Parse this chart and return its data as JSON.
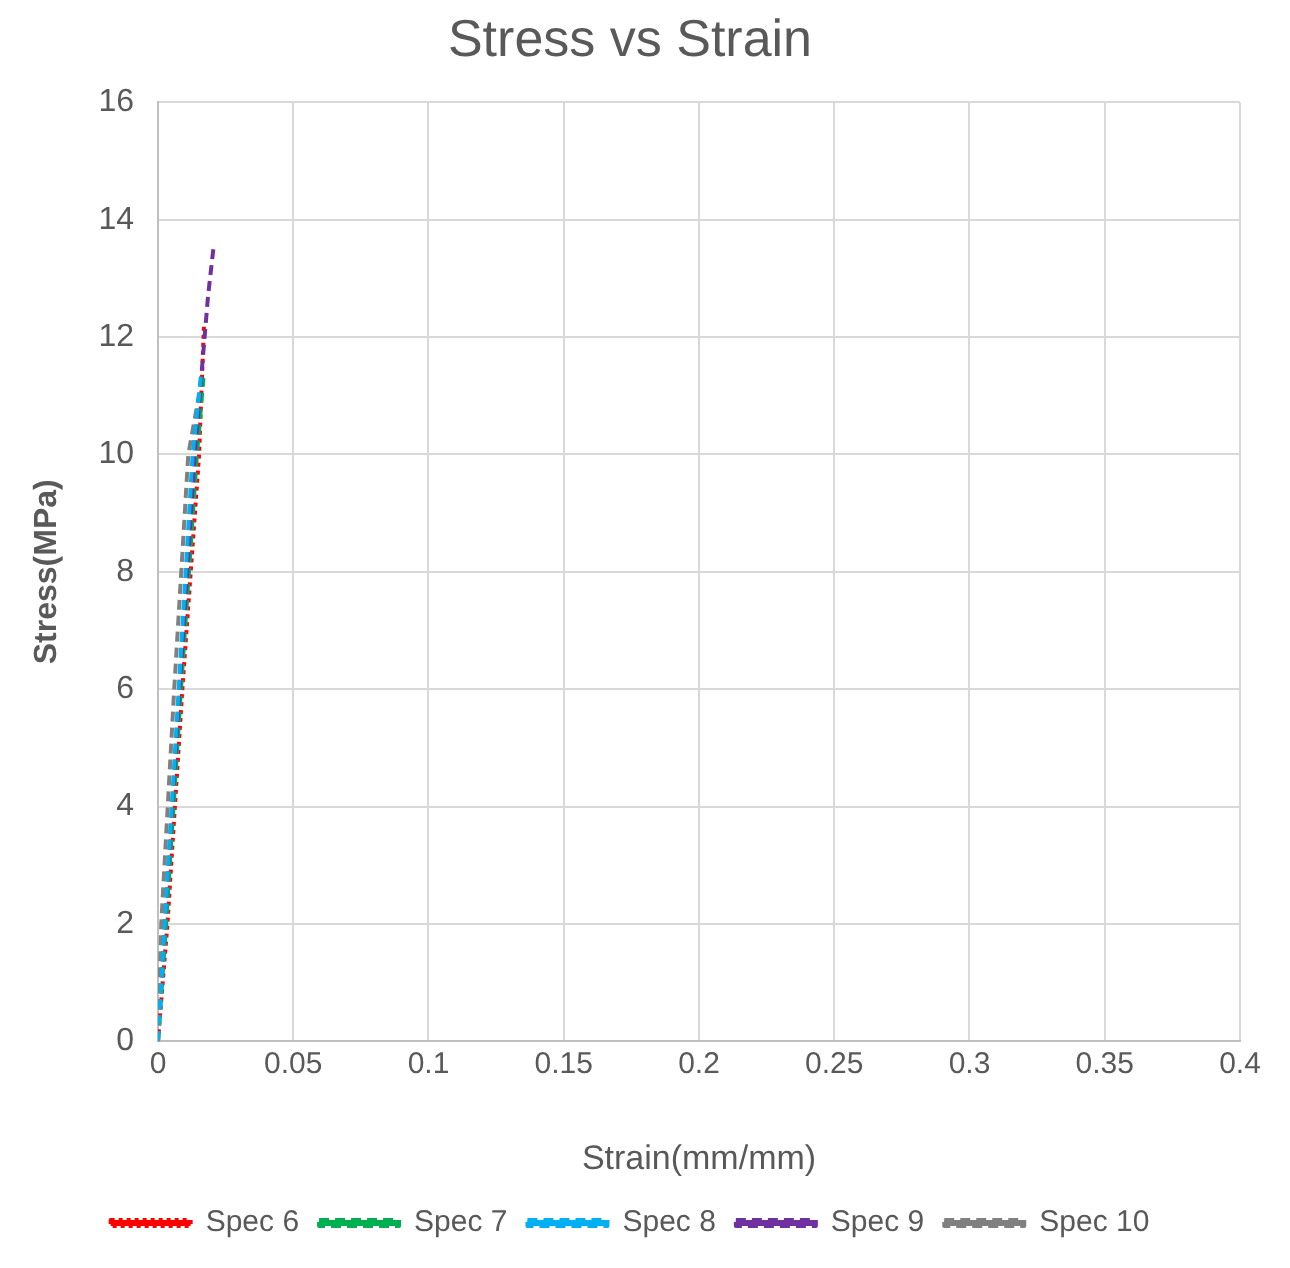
{
  "chart_data": {
    "type": "line",
    "title": "Stress vs Strain",
    "xlabel": "Strain(mm/mm)",
    "ylabel": "Stress(MPa)",
    "xlim": [
      0,
      0.4
    ],
    "xticks": [
      0,
      0.05,
      0.1,
      0.15,
      0.2,
      0.25,
      0.3,
      0.35,
      0.4
    ],
    "ylim": [
      0,
      16
    ],
    "yticks": [
      0,
      2,
      4,
      6,
      8,
      10,
      12,
      14,
      16
    ],
    "grid": true,
    "legend": "bottom",
    "marker": "none",
    "series": [
      {
        "name": "Spec 6",
        "color": "#ff0000",
        "line_style": "dotted",
        "x": [
          0,
          0.0035,
          0.009,
          0.0152,
          0.017
        ],
        "values": [
          0,
          2,
          6,
          10,
          12.2
        ]
      },
      {
        "name": "Spec 7",
        "color": "#00b050",
        "line_style": "dashed",
        "x": [
          0,
          0.003,
          0.0085,
          0.0144,
          0.0168
        ],
        "values": [
          0,
          2,
          6,
          10,
          11.3
        ]
      },
      {
        "name": "Spec 8",
        "color": "#00b0f0",
        "line_style": "dashed",
        "x": [
          0,
          0.002,
          0.007,
          0.0128,
          0.016
        ],
        "values": [
          0,
          1.6,
          5.5,
          10,
          11.4
        ]
      },
      {
        "name": "Spec 9",
        "color": "#7030a0",
        "line_style": "dashed",
        "x": [
          0,
          0.0025,
          0.008,
          0.0136,
          0.0185,
          0.0207
        ],
        "values": [
          0,
          2,
          6,
          10,
          12.7,
          13.6
        ]
      },
      {
        "name": "Spec 10",
        "color": "#808080",
        "line_style": "dashed",
        "x": [
          0,
          0.0012,
          0.006,
          0.0112,
          0.0155
        ],
        "values": [
          0,
          2,
          6,
          10,
          11.1
        ]
      }
    ]
  }
}
